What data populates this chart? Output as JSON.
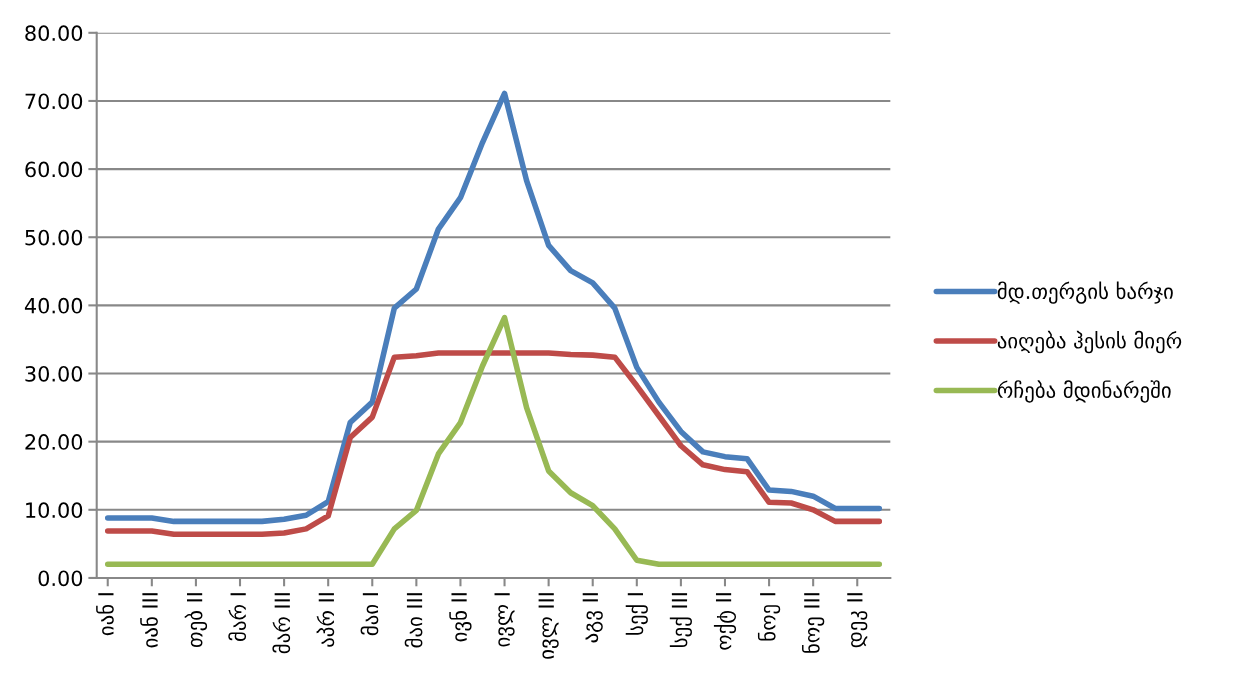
{
  "chart_data": {
    "type": "line",
    "categories": [
      "იან I",
      null,
      "იან III",
      null,
      "თებ II",
      null,
      "მარ I",
      null,
      "მარ III",
      null,
      "აპრ II",
      null,
      "მაი I",
      null,
      "მაი III",
      null,
      "ივნ II",
      null,
      "ივლ I",
      null,
      "ივლ III",
      null,
      "აგვ II",
      null,
      "სექ I",
      null,
      "სექ III",
      null,
      "ოქტ II",
      null,
      "ნოე I",
      null,
      "ნოე III",
      null,
      "დეკ II",
      null
    ],
    "series": [
      {
        "name": "მდ.თერგის ხარჯი",
        "color": "#4a7ebb",
        "values": [
          8.8,
          8.8,
          8.8,
          8.3,
          8.3,
          8.3,
          8.3,
          8.3,
          8.6,
          9.2,
          11.2,
          22.8,
          25.8,
          39.6,
          42.4,
          51.2,
          55.8,
          63.9,
          71.1,
          58.3,
          48.8,
          45.1,
          43.3,
          39.6,
          30.9,
          25.8,
          21.5,
          18.5,
          17.8,
          17.5,
          12.9,
          12.7,
          12.0,
          10.2,
          10.2,
          10.2
        ]
      },
      {
        "name": "აიღება ჰესის მიერ",
        "color": "#be4b48",
        "values": [
          6.9,
          6.9,
          6.9,
          6.4,
          6.4,
          6.4,
          6.4,
          6.4,
          6.6,
          7.2,
          9.1,
          20.6,
          23.6,
          32.4,
          32.6,
          33.0,
          33.0,
          33.0,
          33.0,
          33.0,
          33.0,
          32.8,
          32.7,
          32.4,
          28.2,
          23.8,
          19.4,
          16.6,
          15.9,
          15.6,
          11.1,
          11.0,
          10.0,
          8.3,
          8.3,
          8.3
        ]
      },
      {
        "name": "რჩება მდინარეში",
        "color": "#98b954",
        "values": [
          2.0,
          2.0,
          2.0,
          2.0,
          2.0,
          2.0,
          2.0,
          2.0,
          2.0,
          2.0,
          2.0,
          2.0,
          2.0,
          7.2,
          9.9,
          18.2,
          22.8,
          31.1,
          38.2,
          25.0,
          15.7,
          12.5,
          10.6,
          7.2,
          2.6,
          2.0,
          2.0,
          2.0,
          2.0,
          2.0,
          2.0,
          2.0,
          2.0,
          2.0,
          2.0,
          2.0
        ]
      }
    ],
    "ylim": [
      0,
      80
    ],
    "yticks": [
      {
        "value": 0,
        "label": "0.00"
      },
      {
        "value": 10,
        "label": "10.00"
      },
      {
        "value": 20,
        "label": "20.00"
      },
      {
        "value": 30,
        "label": "30.00"
      },
      {
        "value": 40,
        "label": "40.00"
      },
      {
        "value": 50,
        "label": "50.00"
      },
      {
        "value": 60,
        "label": "60.00"
      },
      {
        "value": 70,
        "label": "70.00"
      },
      {
        "value": 80,
        "label": "80.00"
      }
    ],
    "grid": "y",
    "legend": "right",
    "marker": "none",
    "line_style": "solid"
  }
}
